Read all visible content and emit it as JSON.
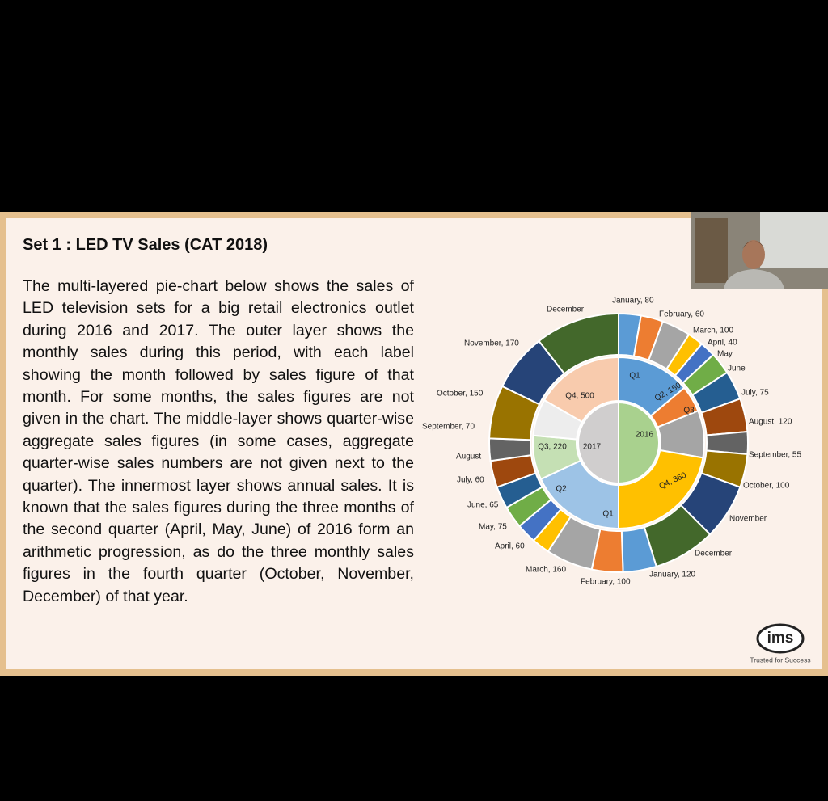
{
  "slide": {
    "title": "Set 1 : LED TV Sales (CAT 2018)",
    "paragraph": "The multi-layered pie-chart below shows the sales of LED television sets for a big retail electronics outlet during 2016 and 2017. The outer layer shows the monthly sales during this period, with each label showing the month followed by sales figure of that month. For some months, the sales figures are not given in the chart. The middle-layer shows quarter-wise aggregate sales figures (in some cases, aggregate quarter-wise sales numbers are not given next to the quarter). The innermost layer shows annual sales. It is known that the sales figures during the three months of the second quarter (April, May, June) of 2016 form an arithmetic progression, as do the three monthly sales figures in the fourth quarter (October, November, December) of that year.",
    "chart": {
      "outer_labels": [
        "January, 80",
        "February, 60",
        "March, 100",
        "April, 40",
        "May",
        "June",
        "July, 75",
        "August, 120",
        "September, 55",
        "October, 100",
        "November",
        "December",
        "January, 120",
        "February, 100",
        "March, 160",
        "April, 60",
        "May, 75",
        "June, 65",
        "July, 60",
        "August",
        "September, 70",
        "October, 150",
        "November, 170",
        "December"
      ],
      "middle_labels": [
        "Q1",
        "Q2, 150",
        "Q3",
        "Q4, 360",
        "Q1",
        "Q2",
        "Q3, 220",
        "Q4, 500"
      ],
      "inner_labels": [
        "2016",
        "2017"
      ]
    },
    "logo": {
      "mark": "ims",
      "tagline": "Trusted for Success"
    }
  }
}
